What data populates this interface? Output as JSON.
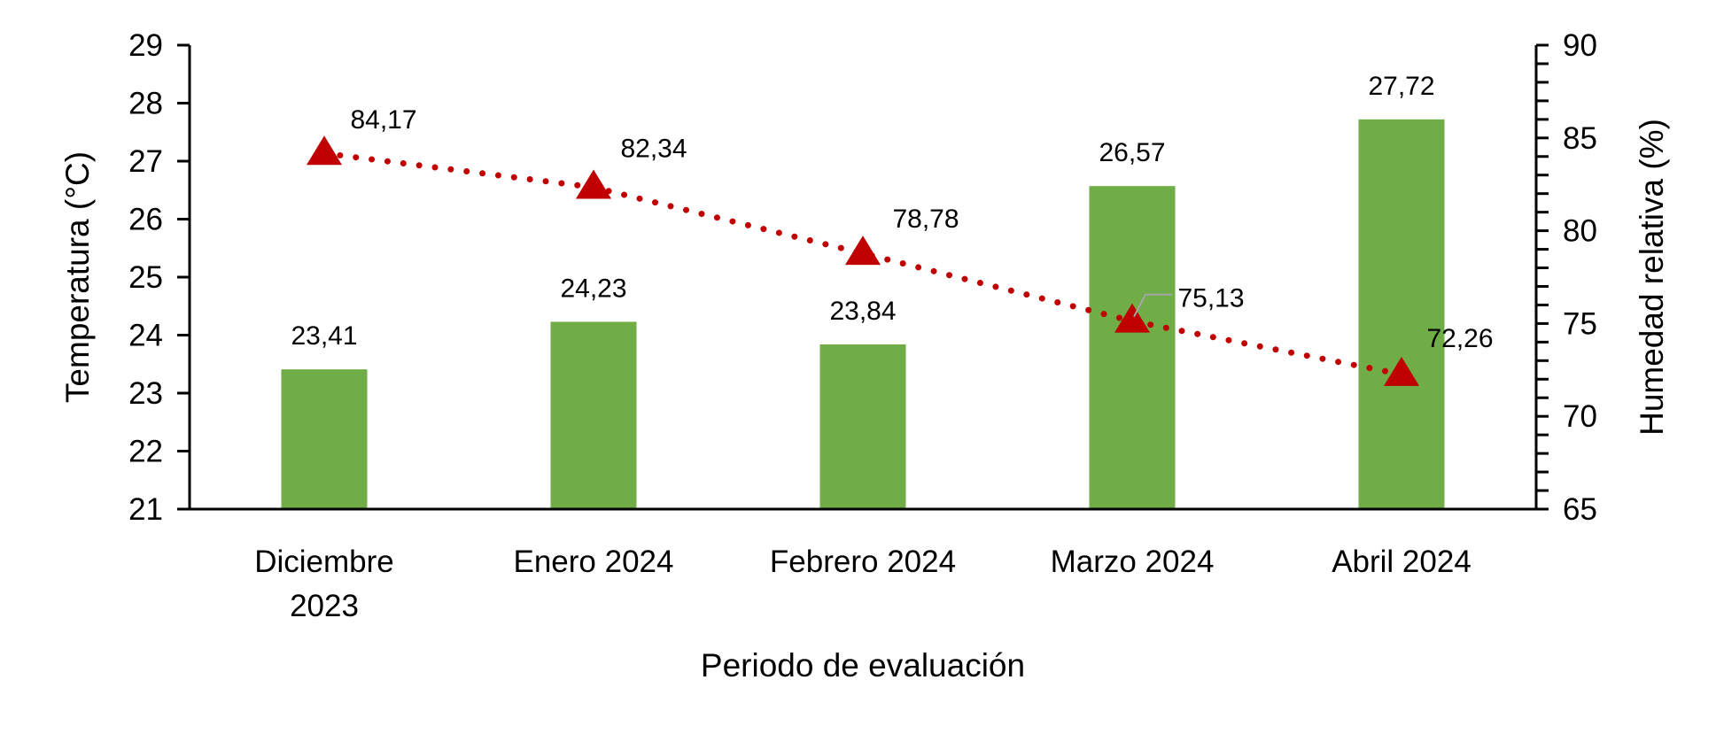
{
  "chart_data": {
    "type": "bar",
    "categories": [
      [
        "Diciembre",
        "2023"
      ],
      [
        "Enero 2024"
      ],
      [
        "Febrero 2024"
      ],
      [
        "Marzo 2024"
      ],
      [
        "Abril 2024"
      ]
    ],
    "xlabel": "Periodo de evaluación",
    "ylabel": "Temperatura (°C)",
    "y2label": "Humedad relativa (%)",
    "ylim": [
      21,
      29
    ],
    "y2lim": [
      65,
      90
    ],
    "yticks": [
      "21",
      "22",
      "23",
      "24",
      "25",
      "26",
      "27",
      "28",
      "29"
    ],
    "y2ticks": [
      "65",
      "70",
      "75",
      "80",
      "85",
      "90"
    ],
    "grid": false,
    "series": [
      {
        "kind": "bar",
        "axis": "left",
        "color": "#70AD47",
        "values": [
          23.41,
          24.23,
          23.84,
          26.57,
          27.72
        ],
        "labels": [
          "23,41",
          "24,23",
          "23,84",
          "26,57",
          "27,72"
        ]
      },
      {
        "kind": "line",
        "axis": "right",
        "color": "#C00000",
        "line_style": "dotted",
        "marker": "triangle",
        "values": [
          84.17,
          82.34,
          78.78,
          75.13,
          72.26
        ],
        "labels": [
          "84,17",
          "82,34",
          "78,78",
          "75,13",
          "72,26"
        ]
      }
    ]
  }
}
